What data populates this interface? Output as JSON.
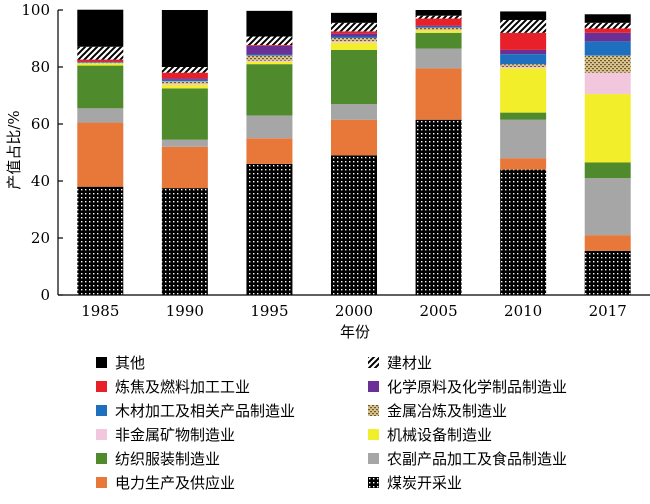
{
  "chart_data": {
    "type": "bar",
    "stacked": true,
    "xlabel": "年份",
    "ylabel": "产值占比/%",
    "ylim": [
      0,
      100
    ],
    "yticks": [
      0,
      20,
      40,
      60,
      80,
      100
    ],
    "categories": [
      "1985",
      "1990",
      "1995",
      "2000",
      "2005",
      "2010",
      "2017"
    ],
    "series": [
      {
        "name": "煤炭开采业",
        "pattern": "dots",
        "color": "#000000",
        "values": [
          38,
          37.5,
          46,
          49,
          61.5,
          44,
          15.5
        ]
      },
      {
        "name": "电力生产及供应业",
        "color": "#e8773a",
        "values": [
          22.5,
          14.5,
          9,
          12.5,
          18,
          4,
          5.5
        ]
      },
      {
        "name": "农副产品加工及食品制造业",
        "color": "#a6a6a6",
        "values": [
          5,
          2.5,
          8,
          5.5,
          7,
          13.5,
          20
        ]
      },
      {
        "name": "纺织服装制造业",
        "color": "#4f8a2c",
        "values": [
          15,
          18,
          18,
          19,
          5.5,
          2.5,
          5.5
        ]
      },
      {
        "name": "机械设备制造业",
        "color": "#f2ee2a",
        "values": [
          0.8,
          1.2,
          0.8,
          2.5,
          0.8,
          15.5,
          24
        ]
      },
      {
        "name": "非金属矿物制造业",
        "color": "#f2c6dd",
        "values": [
          0,
          0.5,
          0.4,
          0.5,
          0.2,
          0.5,
          7.5
        ]
      },
      {
        "name": "金属冶炼及制造业",
        "pattern": "dash",
        "color": "#c8a96a",
        "values": [
          0.2,
          0.8,
          1.8,
          1.2,
          0.8,
          1,
          6
        ]
      },
      {
        "name": "木材加工及相关产品制造业",
        "color": "#1f6fbf",
        "values": [
          0.2,
          0.5,
          0.4,
          0.5,
          0.4,
          3.5,
          5
        ]
      },
      {
        "name": "化学原料及化学制品制造业",
        "color": "#6a3096",
        "values": [
          0.2,
          0.5,
          3,
          1,
          0.3,
          1.5,
          3
        ]
      },
      {
        "name": "炼焦及燃料加工工业",
        "color": "#e8202a",
        "values": [
          0.7,
          2,
          0.3,
          0.8,
          2.5,
          6,
          1.5
        ]
      },
      {
        "name": "建材业",
        "pattern": "hatch",
        "color": "#000000",
        "values": [
          4.5,
          2,
          3,
          3,
          1,
          4.5,
          2
        ]
      },
      {
        "name": "其他",
        "color": "#000000",
        "values": [
          13,
          20,
          9,
          3.5,
          2,
          3,
          3
        ]
      }
    ],
    "legend": {
      "placement": "bottom",
      "columns": 2,
      "order": [
        "其他",
        "建材业",
        "炼焦及燃料加工工业",
        "化学原料及化学制品制造业",
        "木材加工及相关产品制造业",
        "金属冶炼及制造业",
        "非金属矿物制造业",
        "机械设备制造业",
        "纺织服装制造业",
        "农副产品加工及食品制造业",
        "电力生产及供应业",
        "煤炭开采业"
      ]
    }
  }
}
